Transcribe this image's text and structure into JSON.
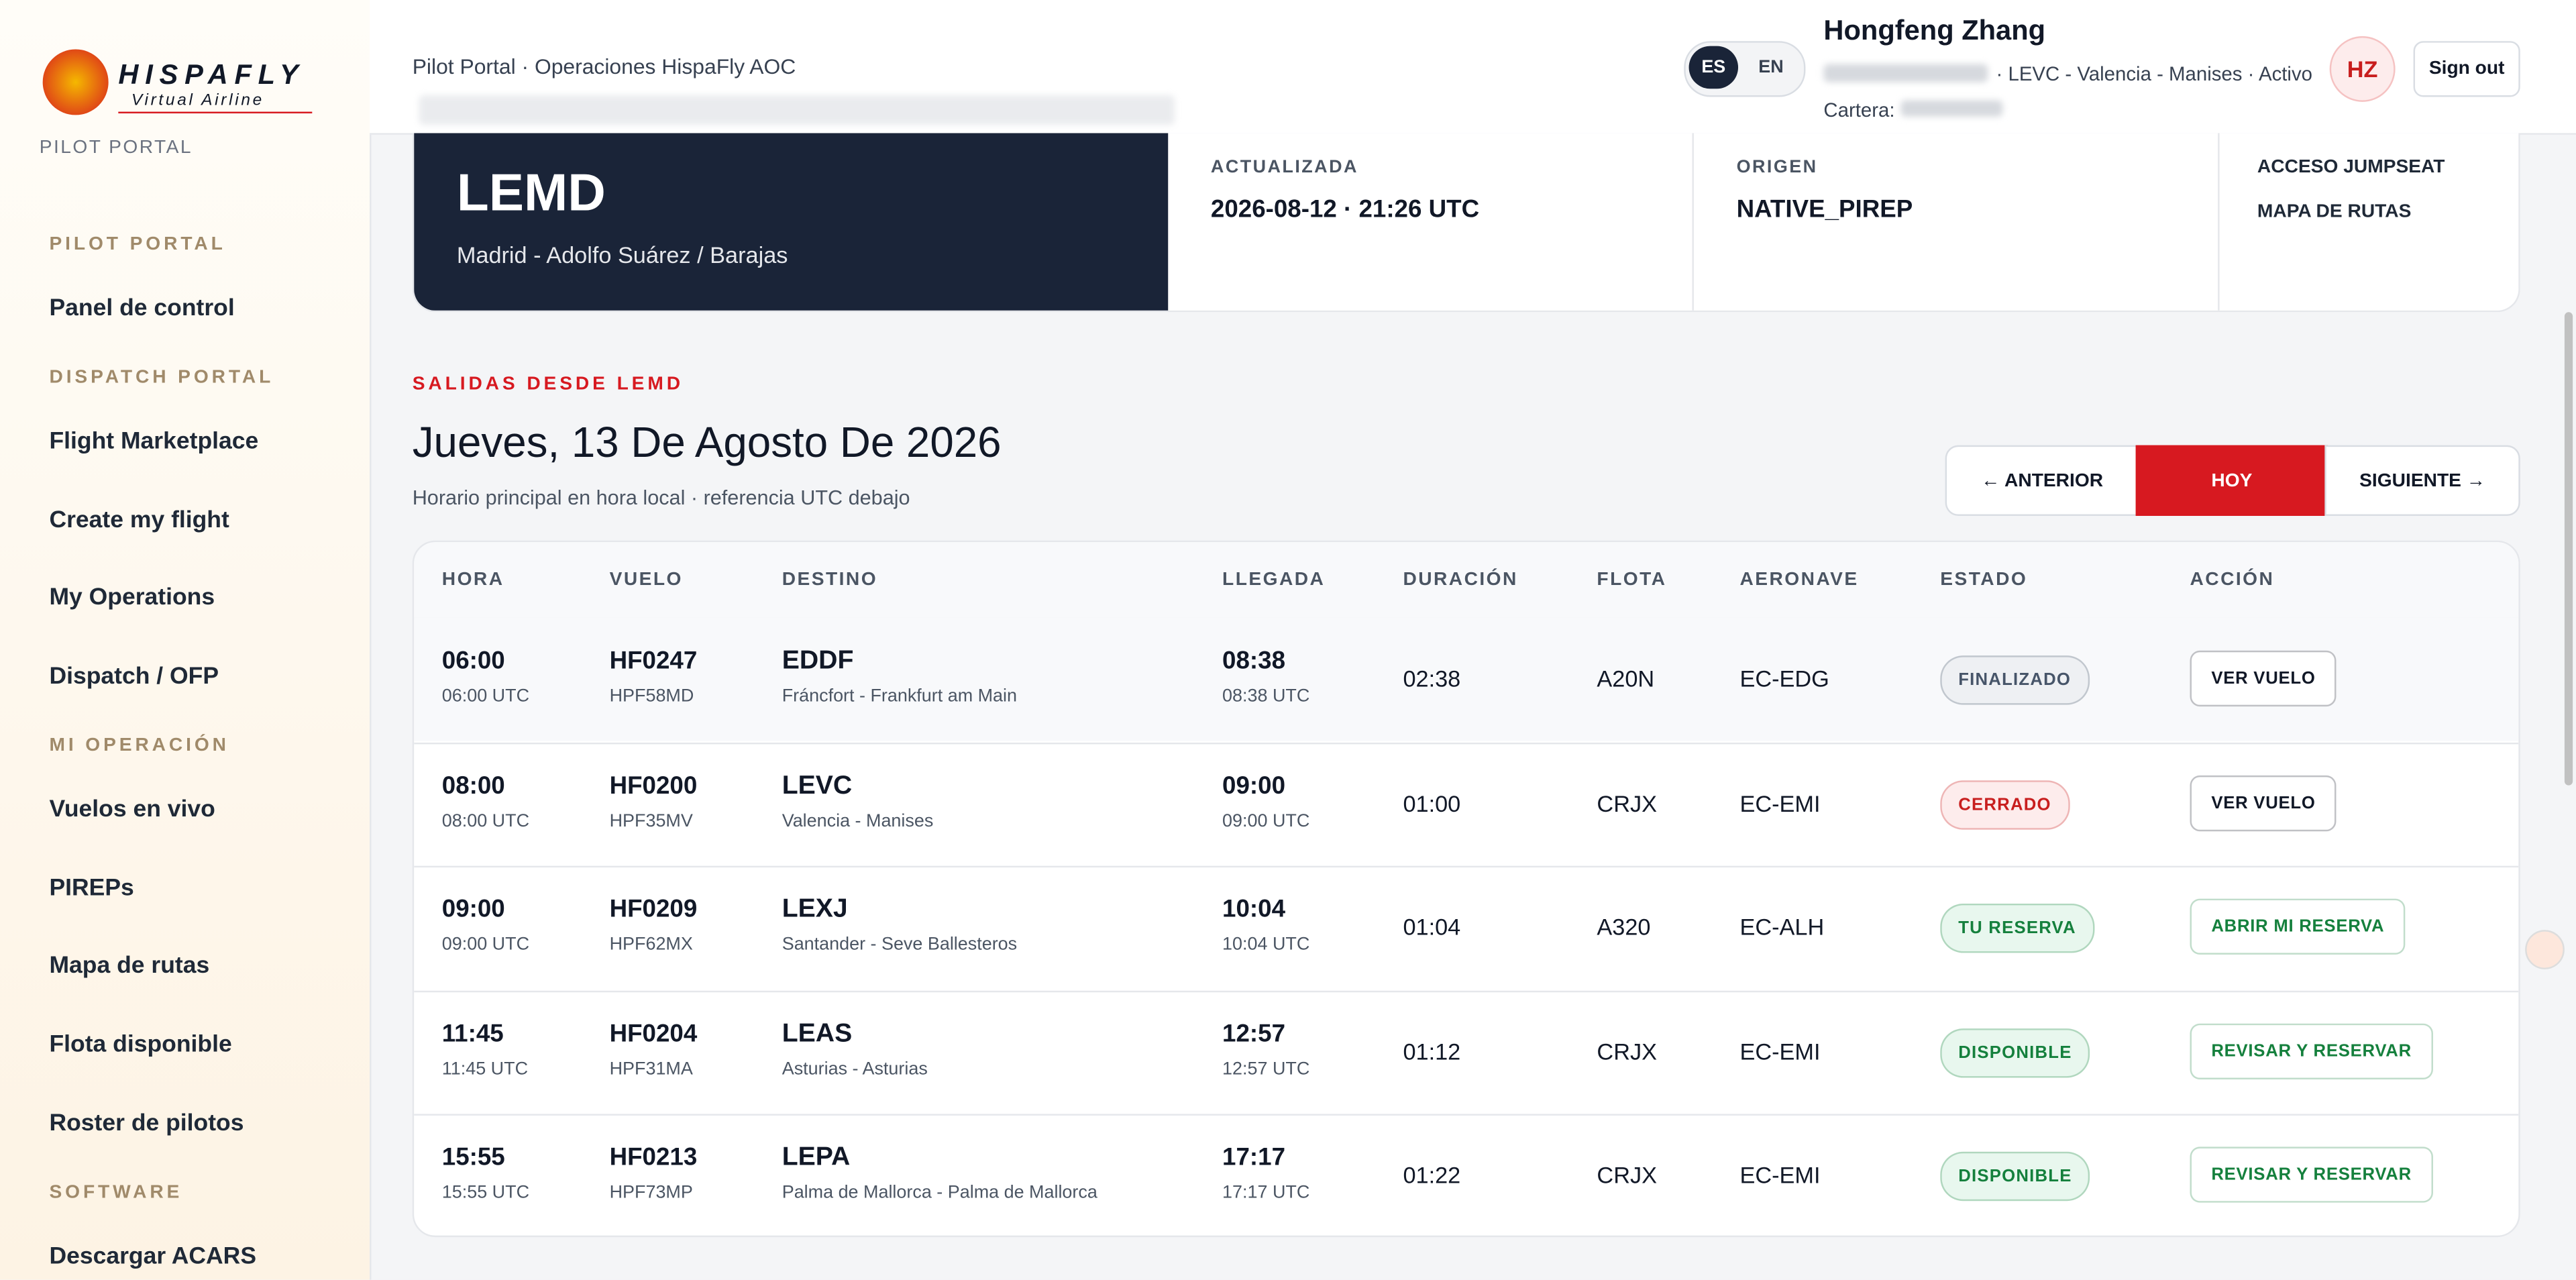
{
  "brand": {
    "name": "HISPAFLY",
    "tagline": "Virtual Airline",
    "portal": "PILOT PORTAL"
  },
  "nav": [
    {
      "title": "PILOT PORTAL",
      "items": [
        "Panel de control"
      ]
    },
    {
      "title": "DISPATCH PORTAL",
      "items": [
        "Flight Marketplace",
        "Create my flight",
        "My Operations",
        "Dispatch / OFP"
      ]
    },
    {
      "title": "MI OPERACIÓN",
      "items": [
        "Vuelos en vivo",
        "PIREPs",
        "Mapa de rutas",
        "Flota disponible",
        "Roster de pilotos"
      ]
    },
    {
      "title": "SOFTWARE",
      "items": [
        "Descargar ACARS"
      ]
    }
  ],
  "header": {
    "breadcrumb": "Pilot Portal · Operaciones HispaFly AOC",
    "languages": [
      "ES",
      "EN"
    ],
    "user_name": "Hongfeng Zhang",
    "user_info": "· LEVC - Valencia - Manises · Activo",
    "wallet": "Cartera:",
    "initials": "HZ",
    "sign_out": "Sign out"
  },
  "airport": {
    "code": "LEMD",
    "name": "Madrid - Adolfo Suárez / Barajas",
    "stats": [
      {
        "label": "ACTUALIZADA",
        "value": "2026-08-12 · 21:26 UTC"
      },
      {
        "label": "ORIGEN",
        "value": "NATIVE_PIREP"
      }
    ],
    "links": [
      "ACCESO JUMPSEAT",
      "MAPA DE RUTAS"
    ]
  },
  "section": {
    "kicker": "SALIDAS DESDE LEMD",
    "title": "Jueves, 13 De Agosto De 2026",
    "subtitle": "Horario principal en hora local · referencia UTC debajo",
    "buttons": [
      "← ANTERIOR",
      "HOY",
      "SIGUIENTE →"
    ]
  },
  "table": {
    "headers": [
      "HORA",
      "VUELO",
      "DESTINO",
      "LLEGADA",
      "DURACIÓN",
      "FLOTA",
      "AERONAVE",
      "ESTADO",
      "ACCIÓN"
    ],
    "rows": [
      {
        "hora": "06:00",
        "hora_utc": "06:00 UTC",
        "vuelo": "HF0247",
        "callsign": "HPF58MD",
        "destino": "EDDF",
        "destino_name": "Fráncfort - Frankfurt am Main",
        "llegada": "08:38",
        "llegada_utc": "08:38 UTC",
        "duracion": "02:38",
        "flota": "A20N",
        "aeronave": "EC-EDG",
        "estado": "FINALIZADO",
        "accion": "VER VUELO",
        "status_color": "#475569",
        "status_bg": "#eef0f3",
        "action_color": "#111827"
      },
      {
        "hora": "08:00",
        "hora_utc": "08:00 UTC",
        "vuelo": "HF0200",
        "callsign": "HPF35MV",
        "destino": "LEVC",
        "destino_name": "Valencia - Manises",
        "llegada": "09:00",
        "llegada_utc": "09:00 UTC",
        "duracion": "01:00",
        "flota": "CRJX",
        "aeronave": "EC-EMI",
        "estado": "CERRADO",
        "accion": "VER VUELO",
        "status_color": "#c81e1e",
        "status_bg": "#fdecec",
        "action_color": "#111827"
      },
      {
        "hora": "09:00",
        "hora_utc": "09:00 UTC",
        "vuelo": "HF0209",
        "callsign": "HPF62MX",
        "destino": "LEXJ",
        "destino_name": "Santander - Seve Ballesteros",
        "llegada": "10:04",
        "llegada_utc": "10:04 UTC",
        "duracion": "01:04",
        "flota": "A320",
        "aeronave": "EC-ALH",
        "estado": "TU RESERVA",
        "accion": "ABRIR MI RESERVA",
        "status_color": "#15803d",
        "status_bg": "#e8f7ee",
        "action_color": "#15803d"
      },
      {
        "hora": "11:45",
        "hora_utc": "11:45 UTC",
        "vuelo": "HF0204",
        "callsign": "HPF31MA",
        "destino": "LEAS",
        "destino_name": "Asturias - Asturias",
        "llegada": "12:57",
        "llegada_utc": "12:57 UTC",
        "duracion": "01:12",
        "flota": "CRJX",
        "aeronave": "EC-EMI",
        "estado": "DISPONIBLE",
        "accion": "REVISAR Y RESERVAR",
        "status_color": "#15803d",
        "status_bg": "#e8f7ee",
        "action_color": "#15803d"
      },
      {
        "hora": "15:55",
        "hora_utc": "15:55 UTC",
        "vuelo": "HF0213",
        "callsign": "HPF73MP",
        "destino": "LEPA",
        "destino_name": "Palma de Mallorca - Palma de Mallorca",
        "llegada": "17:17",
        "llegada_utc": "17:17 UTC",
        "duracion": "01:22",
        "flota": "CRJX",
        "aeronave": "EC-EMI",
        "estado": "DISPONIBLE",
        "accion": "REVISAR Y RESERVAR",
        "status_color": "#15803d",
        "status_bg": "#e8f7ee",
        "action_color": "#15803d"
      }
    ]
  }
}
